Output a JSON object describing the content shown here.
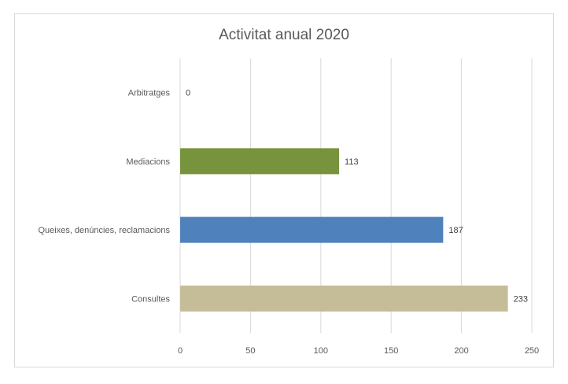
{
  "chart_data": {
    "type": "bar",
    "orientation": "horizontal",
    "title": "Activitat anual 2020",
    "categories": [
      "Arbitratges",
      "Mediacions",
      "Queixes, denúncies, reclamacions",
      "Consultes"
    ],
    "values": [
      0,
      113,
      187,
      233
    ],
    "bar_colors": [
      "#77933c",
      "#77933c",
      "#4f81bd",
      "#c4bd97"
    ],
    "xlim": [
      0,
      250
    ],
    "xticks": [
      0,
      50,
      100,
      150,
      200,
      250
    ],
    "grid": true,
    "data_labels": true,
    "legend": "none"
  }
}
